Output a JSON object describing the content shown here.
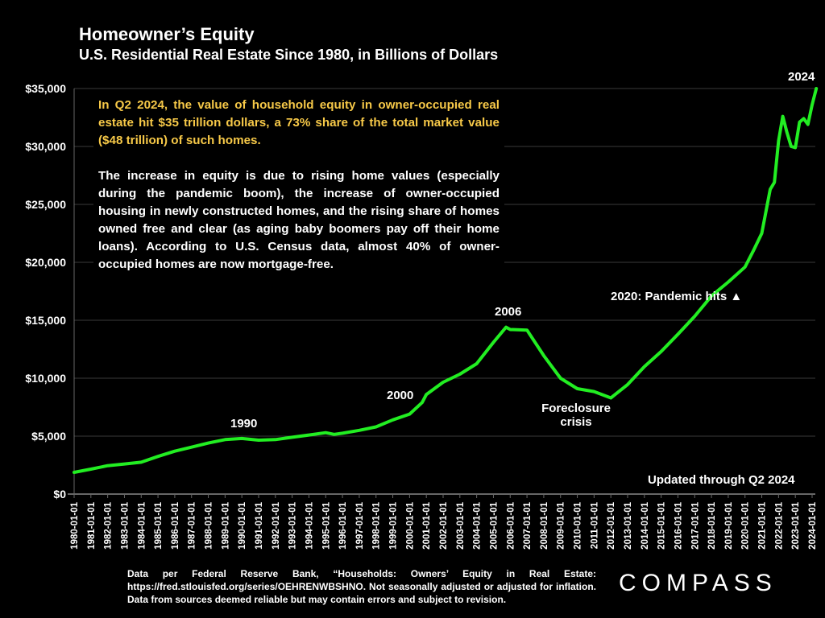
{
  "header": {
    "title": "Homeowner’s Equity",
    "subtitle": "U.S. Residential Real Estate Since 1980, in Billions of Dollars"
  },
  "textbox": {
    "highlight": "In Q2 2024, the value of household equity in owner-occupied real estate hit $35 trillion dollars, a 73% share of the total market value ($48 trillion) of such homes.",
    "body": "The increase in equity is due to rising home values (especially during the pandemic boom), the increase of owner-occupied housing in newly constructed homes, and the rising share of homes owned free and clear (as aging baby boomers pay off their home loans). According to U.S. Census data, almost 40% of owner-occupied homes are now mortgage-free."
  },
  "annotations": {
    "a1990": "1990",
    "a2000": "2000",
    "a2006": "2006",
    "foreclosure1": "Foreclosure",
    "foreclosure2": "crisis",
    "pandemic": "2020:  Pandemic hits ▲",
    "a2024": "2024",
    "updated": "Updated through Q2 2024"
  },
  "footer": {
    "source": "Data per Federal Reserve Bank, “Households: Owners’ Equity in Real Estate: https://fred.stlouisfed.org/series/OEHRENWBSHNO. Not seasonally adjusted or adjusted for inflation. Data from sources deemed reliable but may contain errors and subject to revision.",
    "logo": "COMPASS"
  },
  "colors": {
    "line": "#22ee22",
    "grid": "#3a3a3a",
    "axis": "#666666",
    "highlight": "#f7c948"
  },
  "chart_data": {
    "type": "line",
    "title": "Homeowner’s Equity",
    "ylabel": "Billions of Dollars",
    "ylim": [
      0,
      35000
    ],
    "yticks": [
      0,
      5000,
      10000,
      15000,
      20000,
      25000,
      30000,
      35000
    ],
    "ytick_labels": [
      "$0",
      "$5,000",
      "$10,000",
      "$15,000",
      "$20,000",
      "$25,000",
      "$30,000",
      "$35,000"
    ],
    "xlim": [
      1980,
      2024.25
    ],
    "grid": true,
    "series": [
      {
        "name": "Owners' Equity in Real Estate",
        "x": [
          1980,
          1981,
          1982,
          1983,
          1984,
          1985,
          1986,
          1987,
          1988,
          1989,
          1990,
          1991,
          1992,
          1993,
          1994,
          1995,
          1995.5,
          1996,
          1997,
          1998,
          1999,
          2000,
          2000.75,
          2001,
          2002,
          2003,
          2004,
          2005,
          2005.75,
          2006,
          2007,
          2008,
          2009,
          2010,
          2011,
          2012,
          2013,
          2014,
          2015,
          2016,
          2017,
          2018,
          2019,
          2020,
          2020.5,
          2021,
          2021.5,
          2021.75,
          2022,
          2022.25,
          2022.5,
          2022.75,
          2023,
          2023.25,
          2023.5,
          2023.75,
          2024,
          2024.25
        ],
        "values": [
          1875,
          2150,
          2450,
          2600,
          2750,
          3250,
          3700,
          4050,
          4400,
          4700,
          4800,
          4650,
          4700,
          4900,
          5100,
          5300,
          5150,
          5250,
          5500,
          5800,
          6400,
          6900,
          7900,
          8600,
          9650,
          10350,
          11250,
          13100,
          14400,
          14200,
          14150,
          11950,
          10000,
          9100,
          8850,
          8300,
          9450,
          11000,
          12300,
          13800,
          15350,
          17100,
          18300,
          19600,
          21000,
          22500,
          26300,
          26900,
          30500,
          32600,
          31200,
          30000,
          29900,
          32100,
          32400,
          31900,
          33600,
          35000
        ]
      }
    ]
  }
}
